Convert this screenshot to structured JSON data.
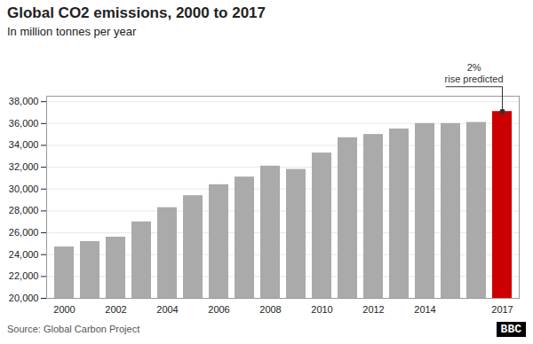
{
  "chart_data": {
    "type": "bar",
    "title": "Global CO2 emissions, 2000 to 2017",
    "subtitle": "In million tonnes per year",
    "source": "Source: Global Carbon Project",
    "logo": "BBC",
    "annotation": [
      "2%",
      "rise predicted"
    ],
    "categories": [
      "2000",
      null,
      "2002",
      null,
      "2004",
      null,
      "2006",
      null,
      "2008",
      null,
      "2010",
      null,
      "2012",
      null,
      "2014",
      null,
      null,
      "2017"
    ],
    "values": [
      24700,
      25200,
      25600,
      27000,
      28300,
      29400,
      30400,
      31100,
      32100,
      31800,
      33300,
      34700,
      35000,
      35500,
      36000,
      36000,
      36100,
      37100
    ],
    "colors": [
      "#aaaaaa",
      "#aaaaaa",
      "#aaaaaa",
      "#aaaaaa",
      "#aaaaaa",
      "#aaaaaa",
      "#aaaaaa",
      "#aaaaaa",
      "#aaaaaa",
      "#aaaaaa",
      "#aaaaaa",
      "#aaaaaa",
      "#aaaaaa",
      "#aaaaaa",
      "#aaaaaa",
      "#aaaaaa",
      "#aaaaaa",
      "#cc0000"
    ],
    "ylim": [
      20000,
      38500
    ],
    "yticks": [
      {
        "value": 20000,
        "label": "20,000"
      },
      {
        "value": 22000,
        "label": "22,000"
      },
      {
        "value": 24000,
        "label": "24,000"
      },
      {
        "value": 26000,
        "label": "26,000"
      },
      {
        "value": 28000,
        "label": "28,000"
      },
      {
        "value": 30000,
        "label": "30,000"
      },
      {
        "value": 32000,
        "label": "32,000"
      },
      {
        "value": 34000,
        "label": "34,000"
      },
      {
        "value": 36000,
        "label": "36,000"
      },
      {
        "value": 38000,
        "label": "38,000"
      }
    ],
    "grid": true
  }
}
